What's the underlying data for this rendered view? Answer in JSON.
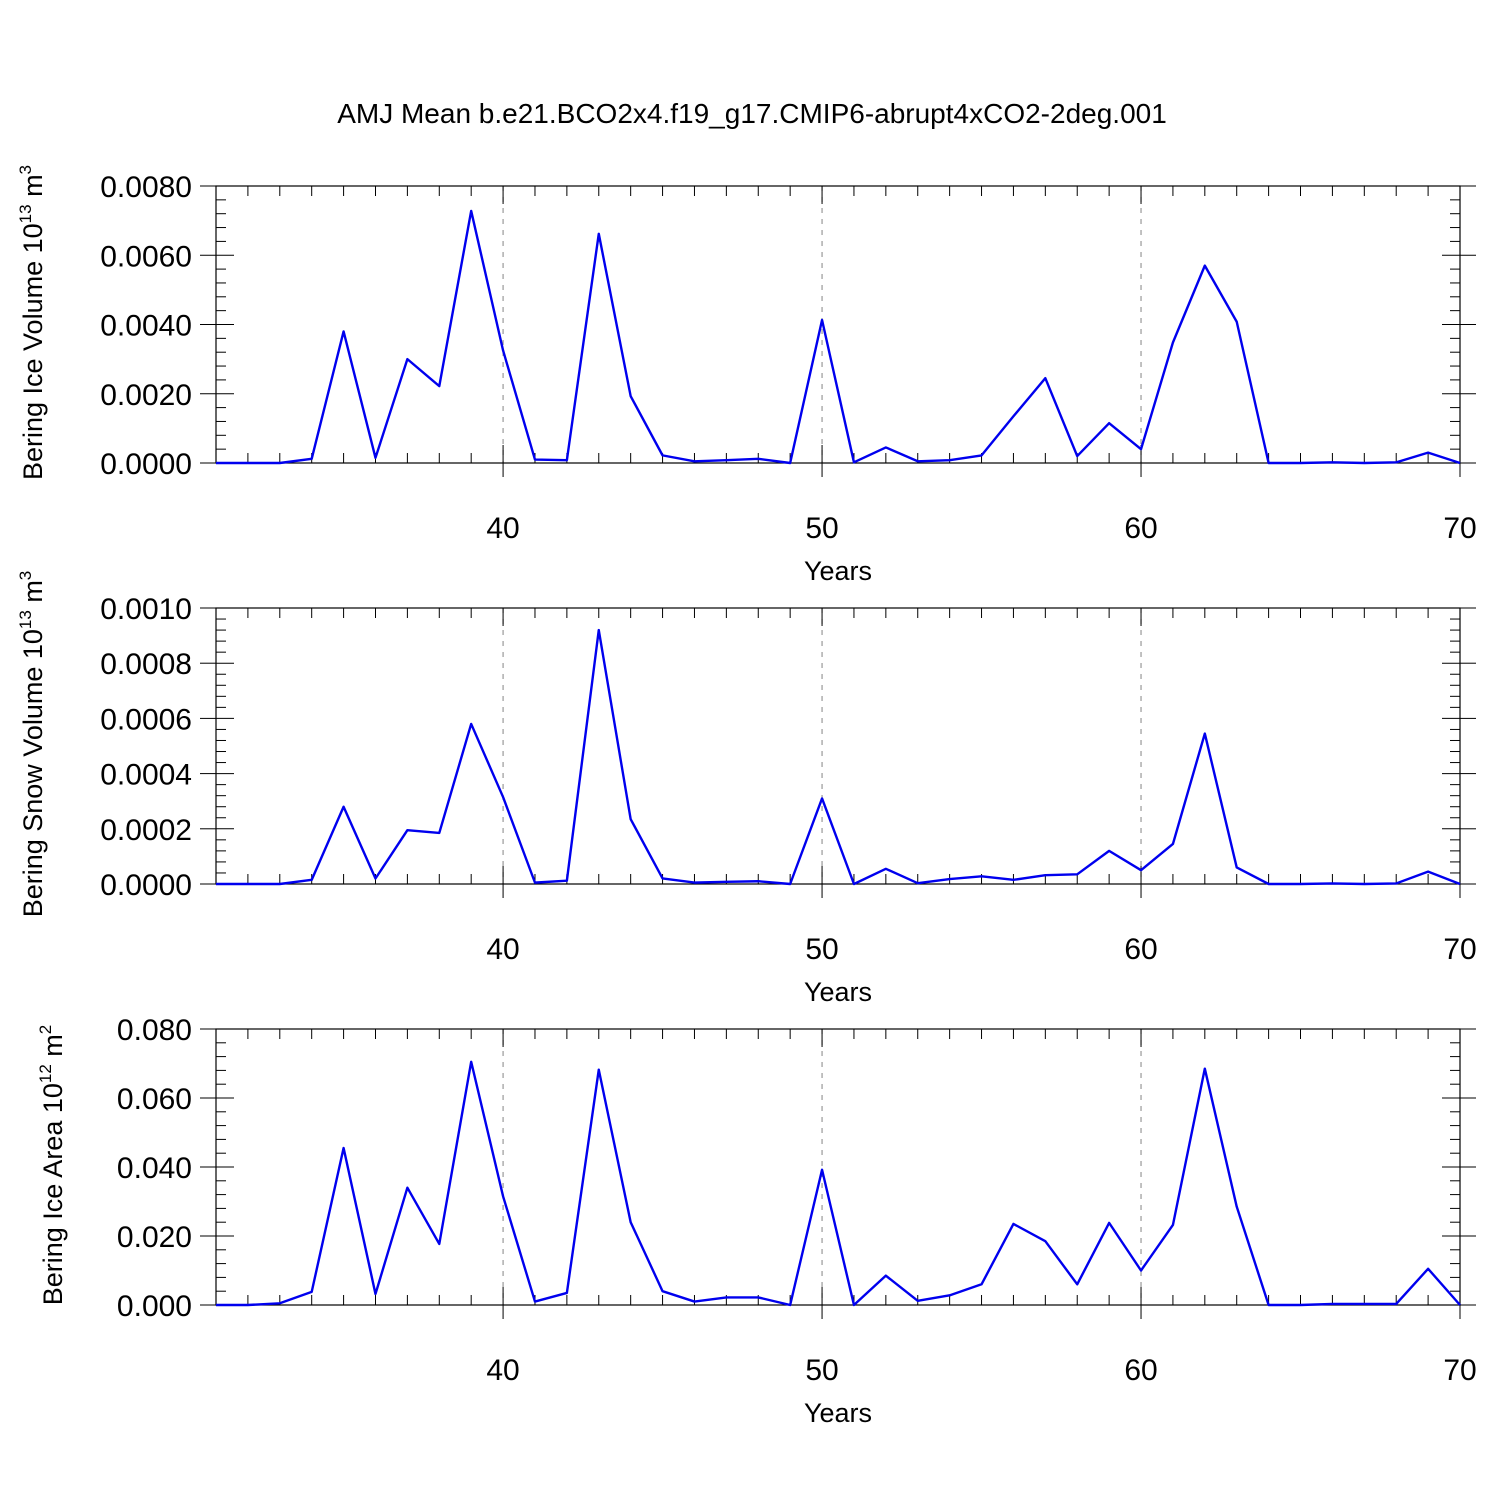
{
  "figure_title": "AMJ Mean b.e21.BCO2x4.f19_g17.CMIP6-abrupt4xCO2-2deg.001",
  "colors": {
    "series": "#0000ee",
    "grid": "#999999",
    "axes": "#000000"
  },
  "chart_data": [
    {
      "type": "line",
      "ylabel": {
        "main": "Bering Ice Volume 10",
        "sup": "13",
        "unit": " m",
        "unit_sup": "3"
      },
      "xlabel": "Years",
      "xlim": [
        31,
        70
      ],
      "ylim": [
        0,
        0.008
      ],
      "xticks": [
        40,
        50,
        60,
        70
      ],
      "xtick_labels": [
        "40",
        "50",
        "60",
        "70"
      ],
      "yticks": [
        0,
        0.002,
        0.004,
        0.006,
        0.008
      ],
      "ytick_labels": [
        "0.0000",
        "0.0020",
        "0.0040",
        "0.0060",
        "0.0080"
      ],
      "grid": "vertical dashed at major x ticks",
      "series": [
        {
          "x": [
            31,
            32,
            33,
            34,
            35,
            36,
            37,
            38,
            39,
            40,
            41,
            42,
            43,
            44,
            45,
            46,
            47,
            48,
            49,
            50,
            51,
            52,
            53,
            54,
            55,
            56,
            57,
            58,
            59,
            60,
            61,
            62,
            63,
            64,
            65,
            66,
            67,
            68,
            69,
            70
          ],
          "values": [
            0.0,
            0.0,
            0.0,
            0.00012,
            0.0038,
            0.00015,
            0.003,
            0.00222,
            0.00728,
            0.00325,
            0.0001,
            8e-05,
            0.00662,
            0.00193,
            0.00022,
            5e-05,
            8e-05,
            0.00012,
            0.0,
            0.00413,
            2e-05,
            0.00045,
            5e-05,
            8e-05,
            0.00022,
            0.00135,
            0.00245,
            0.0002,
            0.00115,
            0.0004,
            0.00348,
            0.0057,
            0.00408,
            0.0,
            0.0,
            2e-05,
            0.0,
            2e-05,
            0.0003,
            0.0
          ]
        }
      ]
    },
    {
      "type": "line",
      "ylabel": {
        "main": "Bering Snow Volume 10",
        "sup": "13",
        "unit": " m",
        "unit_sup": "3"
      },
      "xlabel": "Years",
      "xlim": [
        31,
        70
      ],
      "ylim": [
        0,
        0.001
      ],
      "xticks": [
        40,
        50,
        60,
        70
      ],
      "xtick_labels": [
        "40",
        "50",
        "60",
        "70"
      ],
      "yticks": [
        0,
        0.0002,
        0.0004,
        0.0006,
        0.0008,
        0.001
      ],
      "ytick_labels": [
        "0.0000",
        "0.0002",
        "0.0004",
        "0.0006",
        "0.0008",
        "0.0010"
      ],
      "grid": "vertical dashed at major x ticks",
      "series": [
        {
          "x": [
            31,
            32,
            33,
            34,
            35,
            36,
            37,
            38,
            39,
            40,
            41,
            42,
            43,
            44,
            45,
            46,
            47,
            48,
            49,
            50,
            51,
            52,
            53,
            54,
            55,
            56,
            57,
            58,
            59,
            60,
            61,
            62,
            63,
            64,
            65,
            66,
            67,
            68,
            69,
            70
          ],
          "values": [
            0.0,
            0.0,
            0.0,
            1.5e-05,
            0.00028,
            2e-05,
            0.000195,
            0.000185,
            0.00058,
            0.000315,
            5e-06,
            1.2e-05,
            0.00092,
            0.000235,
            2e-05,
            5e-06,
            8e-06,
            1e-05,
            0.0,
            0.00031,
            0.0,
            5.5e-05,
            3e-06,
            1.8e-05,
            2.8e-05,
            1.5e-05,
            3.2e-05,
            3.5e-05,
            0.00012,
            5e-05,
            0.000145,
            0.000545,
            6e-05,
            0.0,
            0.0,
            2e-06,
            0.0,
            2e-06,
            4.5e-05,
            0.0
          ]
        }
      ]
    },
    {
      "type": "line",
      "ylabel": {
        "main": "Bering Ice Area 10",
        "sup": "12",
        "unit": " m",
        "unit_sup": "2"
      },
      "xlabel": "Years",
      "xlim": [
        31,
        70
      ],
      "ylim": [
        0,
        0.08
      ],
      "xticks": [
        40,
        50,
        60,
        70
      ],
      "xtick_labels": [
        "40",
        "50",
        "60",
        "70"
      ],
      "yticks": [
        0,
        0.02,
        0.04,
        0.06,
        0.08
      ],
      "ytick_labels": [
        "0.000",
        "0.020",
        "0.040",
        "0.060",
        "0.080"
      ],
      "grid": "vertical dashed at major x ticks",
      "series": [
        {
          "x": [
            31,
            32,
            33,
            34,
            35,
            36,
            37,
            38,
            39,
            40,
            41,
            42,
            43,
            44,
            45,
            46,
            47,
            48,
            49,
            50,
            51,
            52,
            53,
            54,
            55,
            56,
            57,
            58,
            59,
            60,
            61,
            62,
            63,
            64,
            65,
            66,
            67,
            68,
            69,
            70
          ],
          "values": [
            0.0,
            0.0,
            0.0005,
            0.0038,
            0.0455,
            0.0032,
            0.034,
            0.0177,
            0.0705,
            0.0315,
            0.001,
            0.0035,
            0.0682,
            0.024,
            0.004,
            0.001,
            0.0022,
            0.0022,
            0.0,
            0.0392,
            0.0,
            0.0085,
            0.0012,
            0.0028,
            0.006,
            0.0235,
            0.0185,
            0.006,
            0.0238,
            0.01,
            0.0232,
            0.0685,
            0.0285,
            0.0,
            0.0,
            0.0003,
            0.0003,
            0.0003,
            0.0105,
            0.0
          ]
        }
      ]
    }
  ]
}
